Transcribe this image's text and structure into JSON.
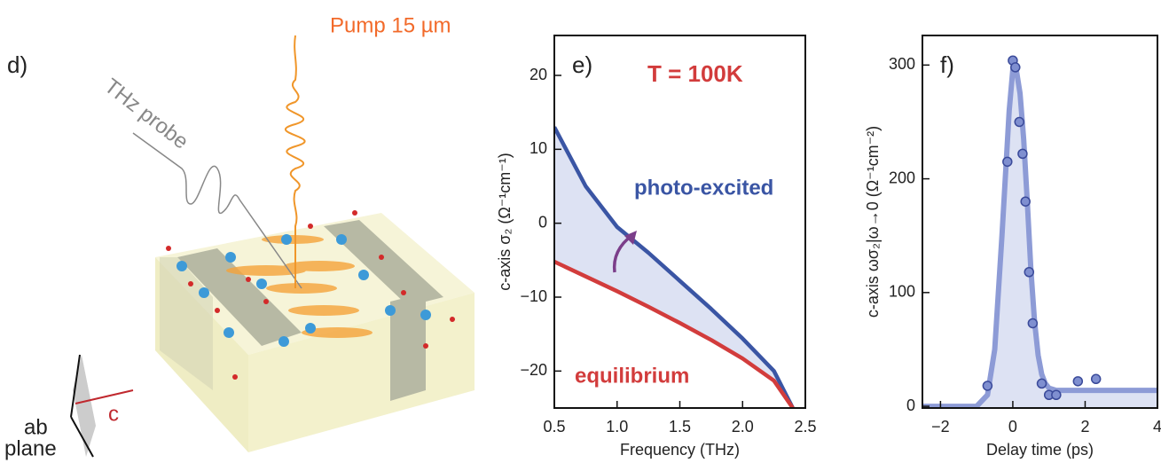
{
  "illustration": {
    "panel_label": "d)",
    "pump_label": "Pump 15 µm",
    "probe_label": "THz probe",
    "axis_ab_line1": "ab",
    "axis_ab_line2": "plane",
    "axis_c": "c"
  },
  "chart_data": [
    {
      "type": "line",
      "panel_label": "e)",
      "xlabel": "Frequency (THz)",
      "ylabel": "c-axis σ₂ (Ω⁻¹cm⁻¹)",
      "annotations": [
        "T = 100K",
        "photo-excited",
        "equilibrium"
      ],
      "x": [
        0.5,
        0.75,
        1.0,
        1.25,
        1.5,
        1.75,
        2.0,
        2.25,
        2.4
      ],
      "series": [
        {
          "name": "photo-excited",
          "color": "#3a55a4",
          "values": [
            13,
            5,
            -0.5,
            -4,
            -7.8,
            -11.6,
            -15.6,
            -20,
            -25
          ]
        },
        {
          "name": "equilibrium",
          "color": "#d23c3c",
          "values": [
            -5.2,
            -7.2,
            -9.2,
            -11.3,
            -13.5,
            -15.8,
            -18.3,
            -21.3,
            -25
          ]
        }
      ],
      "fill_color": "#dde2f3",
      "xlim": [
        0.5,
        2.5
      ],
      "xticks": [
        0.5,
        {
          "value": 1.0,
          "label": "1.0"
        },
        1.5,
        {
          "value": 2.0,
          "label": "2.0"
        },
        2.5
      ],
      "ylim": [
        -25,
        25.4
      ],
      "yticks": [
        {
          "value": -20,
          "label": "−20"
        },
        {
          "value": -10,
          "label": "−10"
        },
        0,
        10,
        20
      ]
    },
    {
      "type": "line",
      "panel_label": "f)",
      "xlabel": "Delay time (ps)",
      "ylabel": "c-axis ωσ₂|ω→0 (Ω⁻¹cm⁻²)",
      "series": [
        {
          "style": "line",
          "color": "#8d9bd6",
          "fill": "#dde2f3",
          "x": [
            -2.5,
            -1,
            -0.7,
            -0.5,
            -0.3,
            -0.1,
            0,
            0.1,
            0.2,
            0.3,
            0.4,
            0.5,
            0.6,
            0.7,
            0.8,
            0.9,
            1.0,
            1.2,
            4
          ],
          "values": [
            0,
            0,
            10,
            50,
            150,
            260,
            296,
            295,
            275,
            235,
            180,
            120,
            75,
            45,
            28,
            20,
            16,
            14,
            14
          ]
        },
        {
          "style": "markers",
          "color": "#7f8fd0",
          "x": [
            -0.7,
            -0.15,
            0,
            0.07,
            0.18,
            0.27,
            0.35,
            0.45,
            0.55,
            0.8,
            1.0,
            1.2,
            1.8,
            2.3
          ],
          "values": [
            18,
            215,
            304,
            298,
            250,
            222,
            180,
            118,
            73,
            20,
            10,
            10,
            22,
            24
          ]
        }
      ],
      "xlim": [
        -2.5,
        4
      ],
      "xticks": [
        {
          "value": -2,
          "label": "−2"
        },
        0,
        2,
        4
      ],
      "ylim": [
        -1.5,
        326
      ],
      "yticks": [
        0,
        100,
        200,
        300
      ]
    }
  ]
}
